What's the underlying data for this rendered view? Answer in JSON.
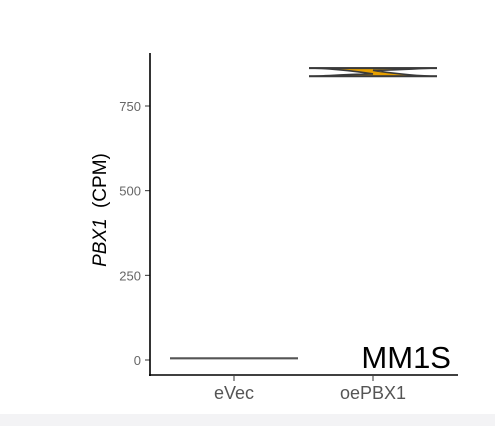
{
  "chart_data": {
    "type": "violin",
    "categories": [
      "eVec",
      "oePBX1"
    ],
    "series": [
      {
        "category": "eVec",
        "median": 5,
        "min": 4,
        "max": 6,
        "fill": "#555555"
      },
      {
        "category": "oePBX1",
        "median": 850,
        "min": 838,
        "max": 862,
        "fill": "#E69F00"
      }
    ],
    "ylabel_gene": "PBX1",
    "ylabel_unit": "(CPM)",
    "yticks": [
      0,
      250,
      500,
      750
    ],
    "ylim": [
      -40,
      900
    ],
    "panel_label": "MM1S",
    "grid": false
  }
}
